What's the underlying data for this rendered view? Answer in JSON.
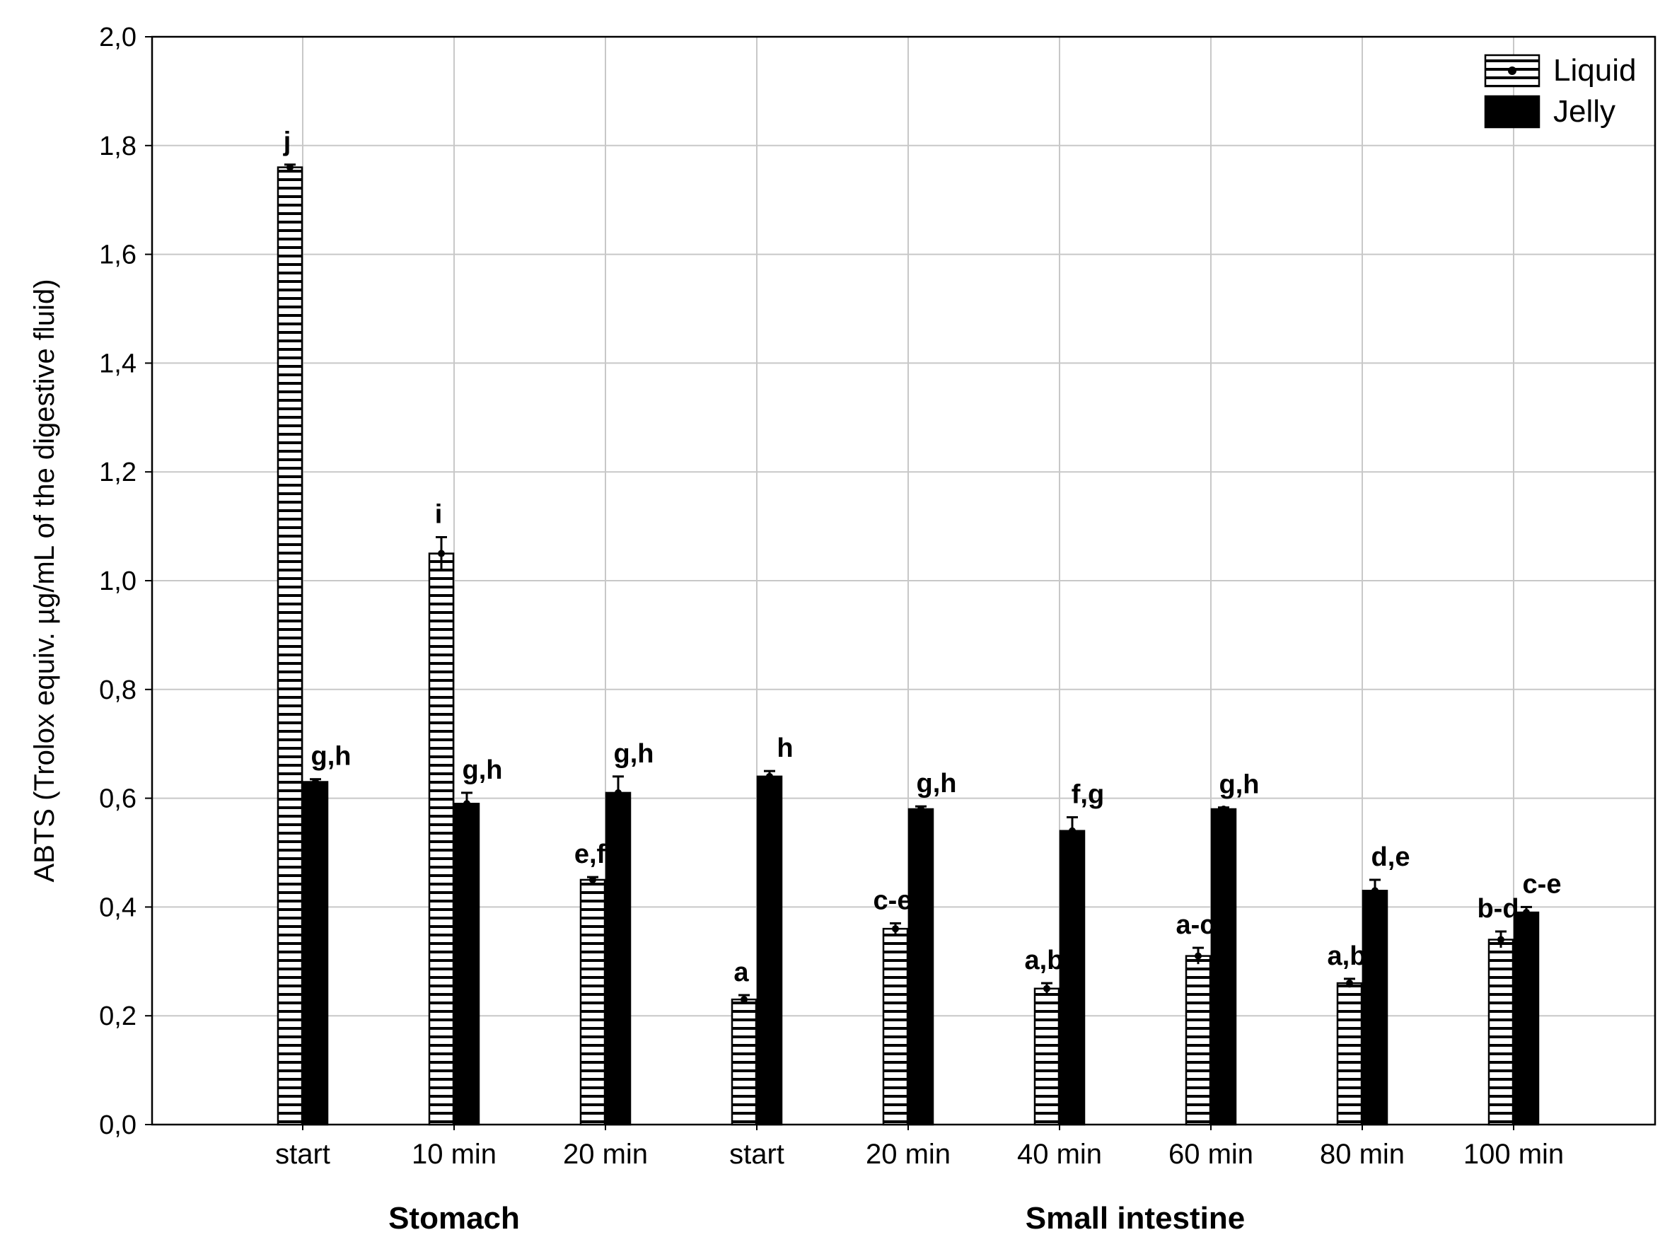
{
  "chart_data": {
    "type": "bar",
    "title": "",
    "ylabel": "ABTS (Trolox equiv. µg/mL of the digestive fluid)",
    "xlabel": "",
    "ylim": [
      0,
      2.0
    ],
    "yticks": [
      0,
      0.2,
      0.4,
      0.6,
      0.8,
      1.0,
      1.2,
      1.4,
      1.6,
      1.8,
      2.0
    ],
    "ytick_labels": [
      "0,0",
      "0,2",
      "0,4",
      "0,6",
      "0,8",
      "1,0",
      "1,2",
      "1,4",
      "1,6",
      "1,8",
      "2,0"
    ],
    "grid": true,
    "legend_position": "top-right",
    "categories": [
      "start",
      "10 min",
      "20 min",
      "start",
      "20 min",
      "40 min",
      "60 min",
      "80 min",
      "100 min"
    ],
    "groups": [
      {
        "label": "Stomach",
        "first": 0,
        "last": 2
      },
      {
        "label": "Small intestine",
        "first": 3,
        "last": 8
      }
    ],
    "series": [
      {
        "name": "Liquid",
        "pattern": "horizontal-stripes",
        "values": [
          1.76,
          1.05,
          0.45,
          0.23,
          0.36,
          0.25,
          0.31,
          0.26,
          0.34
        ],
        "errors": [
          0.005,
          0.03,
          0.005,
          0.008,
          0.01,
          0.01,
          0.015,
          0.008,
          0.015
        ],
        "letters": [
          "j",
          "i",
          "e,f",
          "a",
          "c-e",
          "a,b",
          "a-c",
          "a,b",
          "b-d"
        ]
      },
      {
        "name": "Jelly",
        "pattern": "solid",
        "color": "#000000",
        "values": [
          0.63,
          0.59,
          0.61,
          0.64,
          0.58,
          0.54,
          0.58,
          0.43,
          0.39
        ],
        "errors": [
          0.005,
          0.02,
          0.03,
          0.01,
          0.005,
          0.025,
          0.003,
          0.02,
          0.01
        ],
        "letters": [
          "g,h",
          "g,h",
          "g,h",
          "h",
          "g,h",
          "f,g",
          "g,h",
          "d,e",
          "c-e"
        ]
      }
    ]
  }
}
